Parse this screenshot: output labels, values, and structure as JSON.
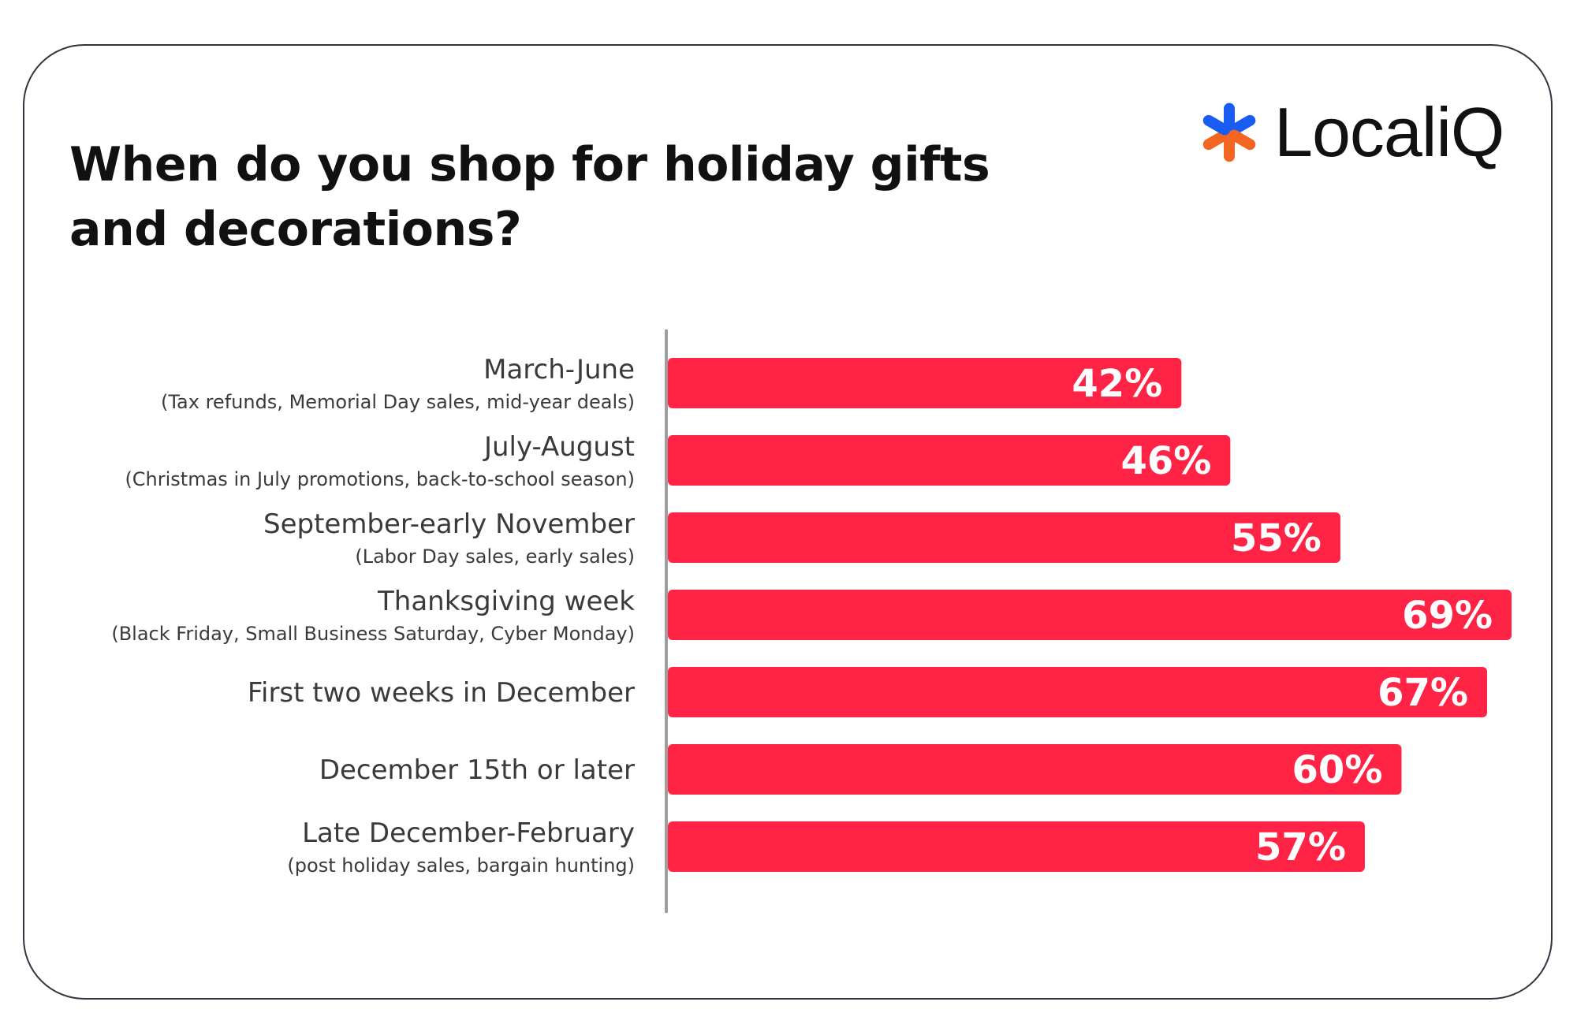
{
  "brand": {
    "name": "LocaliQ",
    "mark_colors": [
      "#1a5cf2",
      "#f26522"
    ]
  },
  "chart_data": {
    "type": "bar",
    "orientation": "horizontal",
    "title": "When do you shop for holiday gifts and decorations?",
    "categories": [
      "March-June",
      "July-August",
      "September-early November",
      "Thanksgiving week",
      "First two weeks in December",
      "December 15th or later",
      "Late December-February"
    ],
    "category_notes": [
      "(Tax refunds, Memorial Day sales, mid-year deals)",
      "(Christmas in July promotions, back-to-school season)",
      "(Labor Day sales, early sales)",
      "(Black Friday, Small Business Saturday, Cyber Monday)",
      "",
      "",
      "(post holiday sales, bargain hunting)"
    ],
    "values": [
      42,
      46,
      55,
      69,
      67,
      60,
      57
    ],
    "value_labels": [
      "42%",
      "46%",
      "55%",
      "69%",
      "67%",
      "60%",
      "57%"
    ],
    "unit": "%",
    "xlim": [
      0,
      69
    ],
    "grid": false,
    "legend": "none",
    "bar_color": "#ff2345",
    "axis_color": "#9e9e9e"
  }
}
